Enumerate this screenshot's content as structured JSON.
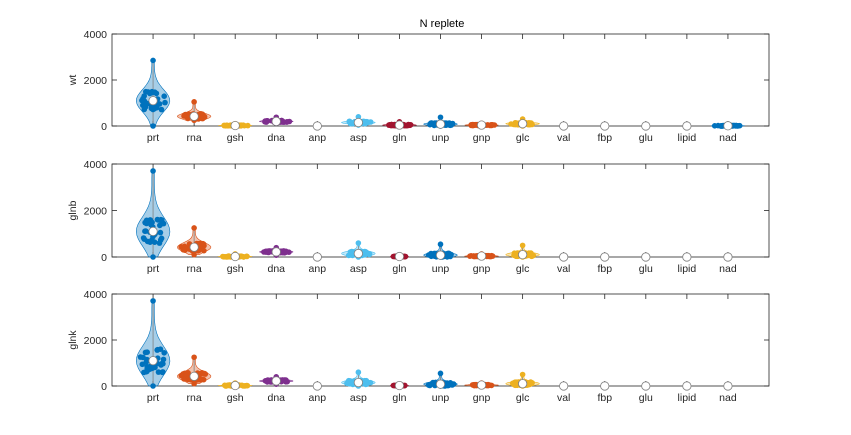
{
  "figure": {
    "title": "N replete"
  },
  "chart_data": [
    {
      "type": "violin",
      "title": "N replete",
      "ylabel": "wt",
      "ylim": [
        0,
        4000
      ],
      "yticks": [
        0,
        2000,
        4000
      ],
      "categories": [
        "prt",
        "rna",
        "gsh",
        "dna",
        "anp",
        "asp",
        "gln",
        "unp",
        "gnp",
        "glc",
        "val",
        "fbp",
        "glu",
        "lipid",
        "nad"
      ],
      "colors": [
        "#0072BD",
        "#D95319",
        "#EDB120",
        "#7E2F8E",
        "#77AC30",
        "#4DBEEE",
        "#A2142F",
        "#0072BD",
        "#D95319",
        "#EDB120",
        "#7E2F8E",
        "#77AC30",
        "#4DBEEE",
        "#A2142F",
        "#0072BD"
      ],
      "median": [
        1100,
        420,
        20,
        200,
        0,
        150,
        40,
        80,
        40,
        100,
        0,
        0,
        0,
        0,
        10
      ],
      "min": [
        0,
        250,
        0,
        120,
        0,
        40,
        0,
        0,
        0,
        0,
        0,
        0,
        0,
        0,
        0
      ],
      "max": [
        2850,
        1050,
        100,
        380,
        0,
        400,
        180,
        380,
        120,
        300,
        0,
        0,
        0,
        0,
        60
      ],
      "halfwidth": [
        0.38,
        0.38,
        0.38,
        0.38,
        0,
        0.38,
        0.38,
        0.38,
        0.38,
        0.38,
        0,
        0,
        0,
        0,
        0.38
      ]
    },
    {
      "type": "violin",
      "title": "",
      "ylabel": "glnb",
      "ylim": [
        0,
        4000
      ],
      "yticks": [
        0,
        2000,
        4000
      ],
      "categories": [
        "prt",
        "rna",
        "gsh",
        "dna",
        "anp",
        "asp",
        "gln",
        "unp",
        "gnp",
        "glc",
        "val",
        "fbp",
        "glu",
        "lipid",
        "nad"
      ],
      "colors": [
        "#0072BD",
        "#D95319",
        "#EDB120",
        "#7E2F8E",
        "#77AC30",
        "#4DBEEE",
        "#A2142F",
        "#0072BD",
        "#D95319",
        "#EDB120",
        "#7E2F8E",
        "#77AC30",
        "#4DBEEE",
        "#A2142F",
        "#0072BD"
      ],
      "median": [
        1100,
        420,
        20,
        220,
        0,
        150,
        20,
        80,
        40,
        100,
        0,
        0,
        0,
        0,
        0
      ],
      "min": [
        0,
        100,
        0,
        80,
        0,
        0,
        0,
        0,
        0,
        0,
        0,
        0,
        0,
        0,
        0
      ],
      "max": [
        3700,
        1250,
        130,
        400,
        0,
        600,
        60,
        550,
        130,
        500,
        0,
        0,
        0,
        0,
        0
      ],
      "halfwidth": [
        0.38,
        0.38,
        0.38,
        0.38,
        0,
        0.38,
        0.2,
        0.38,
        0.38,
        0.38,
        0,
        0,
        0,
        0,
        0
      ]
    },
    {
      "type": "violin",
      "title": "",
      "ylabel": "glnk",
      "ylim": [
        0,
        4000
      ],
      "yticks": [
        0,
        2000,
        4000
      ],
      "categories": [
        "prt",
        "rna",
        "gsh",
        "dna",
        "anp",
        "asp",
        "gln",
        "unp",
        "gnp",
        "glc",
        "val",
        "fbp",
        "glu",
        "lipid",
        "nad"
      ],
      "colors": [
        "#0072BD",
        "#D95319",
        "#EDB120",
        "#7E2F8E",
        "#77AC30",
        "#4DBEEE",
        "#A2142F",
        "#0072BD",
        "#D95319",
        "#EDB120",
        "#7E2F8E",
        "#77AC30",
        "#4DBEEE",
        "#A2142F",
        "#0072BD"
      ],
      "median": [
        1100,
        420,
        20,
        220,
        0,
        150,
        20,
        80,
        40,
        100,
        0,
        0,
        0,
        0,
        0
      ],
      "min": [
        0,
        100,
        0,
        80,
        0,
        0,
        0,
        0,
        0,
        0,
        0,
        0,
        0,
        0,
        0
      ],
      "max": [
        3700,
        1250,
        130,
        400,
        0,
        600,
        60,
        550,
        130,
        500,
        0,
        0,
        0,
        0,
        0
      ],
      "halfwidth": [
        0.38,
        0.38,
        0.38,
        0.38,
        0,
        0.38,
        0.2,
        0.38,
        0.38,
        0.38,
        0,
        0,
        0,
        0,
        0
      ]
    }
  ]
}
